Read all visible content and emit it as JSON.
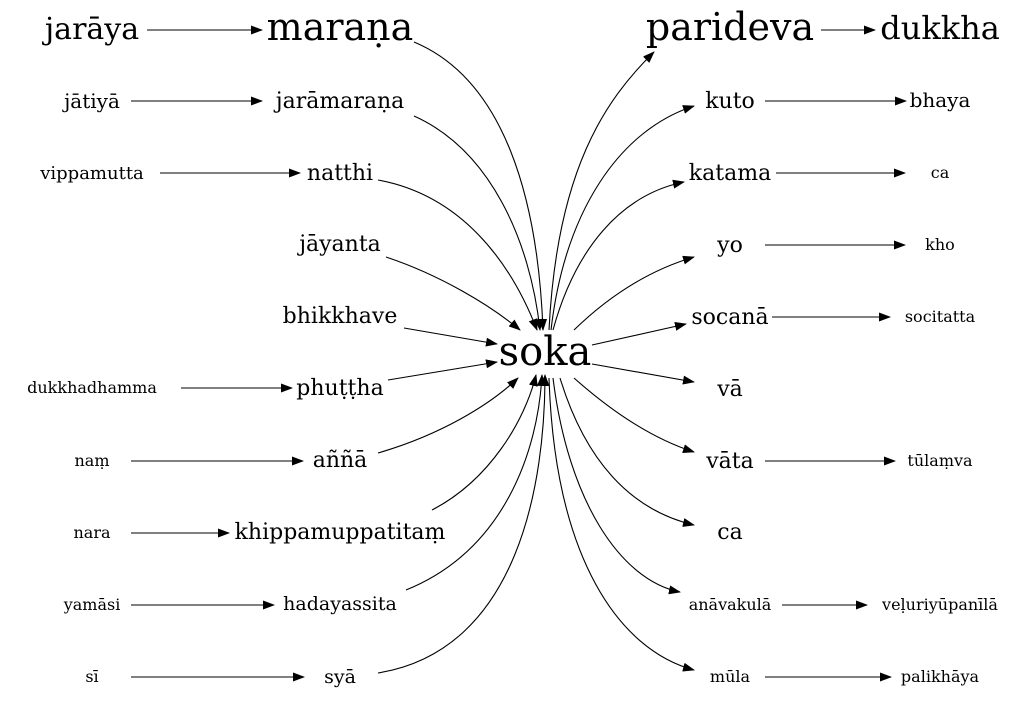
{
  "graph": {
    "center": "soka",
    "left_chains": [
      {
        "from": "jarāya",
        "to": "maraṇa"
      },
      {
        "from": "jātiyā",
        "to": "jarāmaraṇa"
      },
      {
        "from": "vippamutta",
        "to": "natthi"
      },
      {
        "from": "",
        "to": "jāyanta"
      },
      {
        "from": "",
        "to": "bhikkhave"
      },
      {
        "from": "dukkhadhamma",
        "to": "phuṭṭha"
      },
      {
        "from": "naṃ",
        "to": "aññā"
      },
      {
        "from": "nara",
        "to": "khippamuppatitaṃ"
      },
      {
        "from": "yamāsi",
        "to": "hadayassita"
      },
      {
        "from": "sī",
        "to": "syā"
      }
    ],
    "right_chains": [
      {
        "from": "parideva",
        "to": "dukkha"
      },
      {
        "from": "kuto",
        "to": "bhaya"
      },
      {
        "from": "katama",
        "to": "ca"
      },
      {
        "from": "yo",
        "to": "kho"
      },
      {
        "from": "socanā",
        "to": "socitatta"
      },
      {
        "from": "vā",
        "to": ""
      },
      {
        "from": "vāta",
        "to": "tūlaṃva"
      },
      {
        "from": "ca",
        "to": ""
      },
      {
        "from": "anāvakulā",
        "to": "veḷuriyūpanīlā"
      },
      {
        "from": "mūla",
        "to": "palikhāya"
      }
    ]
  }
}
